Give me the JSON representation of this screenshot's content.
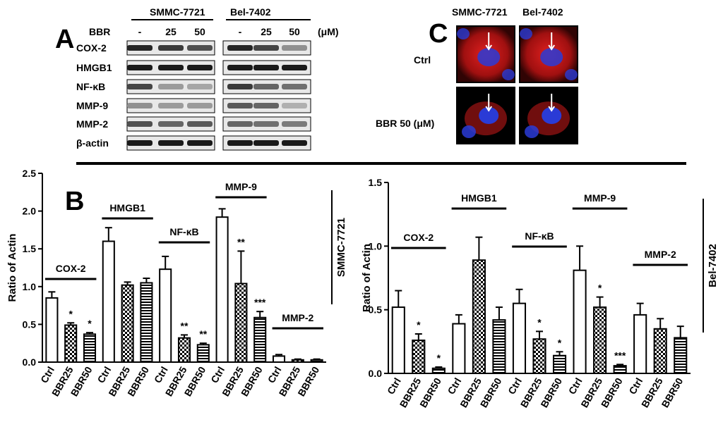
{
  "panel_labels": {
    "a": "A",
    "b": "B",
    "c": "C"
  },
  "blot": {
    "cell_lines": [
      "SMMC-7721",
      "Bel-7402"
    ],
    "treatment_label": "BBR",
    "doses": [
      "-",
      "25",
      "50"
    ],
    "unit": "(μM)",
    "rows": [
      "COX-2",
      "HMGB1",
      "NF-κB",
      "MMP-9",
      "MMP-2",
      "β-actin"
    ]
  },
  "micro": {
    "cell_lines": [
      "SMMC-7721",
      "Bel-7402"
    ],
    "rows": [
      "Ctrl",
      "BBR 50 (μM)"
    ],
    "colors": {
      "stain": "#cc1a1a",
      "nucleus": "#2a3bd6",
      "background": "#000000",
      "arrow": "#ffffff"
    }
  },
  "chart_data": [
    {
      "type": "bar",
      "ylabel": "Ratio of Actin",
      "side_label": "SMMC-7721",
      "ylim": [
        0,
        2.5
      ],
      "yticks": [
        "0.0",
        "0.5",
        "1.0",
        "1.5",
        "2.0",
        "2.5"
      ],
      "categories": [
        "Ctrl",
        "BBR25",
        "BBR50",
        "Ctrl",
        "BBR25",
        "BBR50",
        "Ctrl",
        "BBR25",
        "BBR50",
        "Ctrl",
        "BBR25",
        "BBR50",
        "Ctrl",
        "BBR25",
        "BBR50"
      ],
      "groups": [
        "COX-2",
        "HMGB1",
        "NF-κB",
        "MMP-9",
        "MMP-2"
      ],
      "values": [
        0.85,
        0.49,
        0.37,
        1.6,
        1.02,
        1.05,
        1.23,
        0.32,
        0.23,
        1.92,
        1.04,
        0.59,
        0.08,
        0.03,
        0.03
      ],
      "errors": [
        0.08,
        0.03,
        0.02,
        0.18,
        0.04,
        0.06,
        0.17,
        0.04,
        0.02,
        0.11,
        0.43,
        0.08,
        0.02,
        0.01,
        0.01
      ],
      "annotations": [
        "",
        "*",
        "*",
        "",
        "",
        "",
        "",
        "**",
        "**",
        "",
        "**",
        "***",
        "",
        "",
        ""
      ]
    },
    {
      "type": "bar",
      "ylabel": "Ratio of Actin",
      "side_label": "Bel-7402",
      "ylim": [
        0,
        1.5
      ],
      "yticks": [
        "0.0",
        "0.5",
        "1.0",
        "1.5"
      ],
      "categories": [
        "Ctrl",
        "BBR25",
        "BBR50",
        "Ctrl",
        "BBR25",
        "BBR50",
        "Ctrl",
        "BBR25",
        "BBR50",
        "Ctrl",
        "BBR25",
        "BBR50",
        "Ctrl",
        "BBR25",
        "BBR50"
      ],
      "groups": [
        "COX-2",
        "HMGB1",
        "NF-κB",
        "MMP-9",
        "MMP-2"
      ],
      "values": [
        0.52,
        0.26,
        0.04,
        0.39,
        0.89,
        0.42,
        0.55,
        0.27,
        0.14,
        0.81,
        0.52,
        0.06,
        0.46,
        0.35,
        0.28
      ],
      "errors": [
        0.13,
        0.05,
        0.01,
        0.07,
        0.18,
        0.1,
        0.11,
        0.06,
        0.03,
        0.19,
        0.08,
        0.01,
        0.09,
        0.08,
        0.09
      ],
      "annotations": [
        "",
        "*",
        "*",
        "",
        "",
        "",
        "",
        "*",
        "*",
        "",
        "*",
        "***",
        "",
        "",
        ""
      ]
    }
  ]
}
